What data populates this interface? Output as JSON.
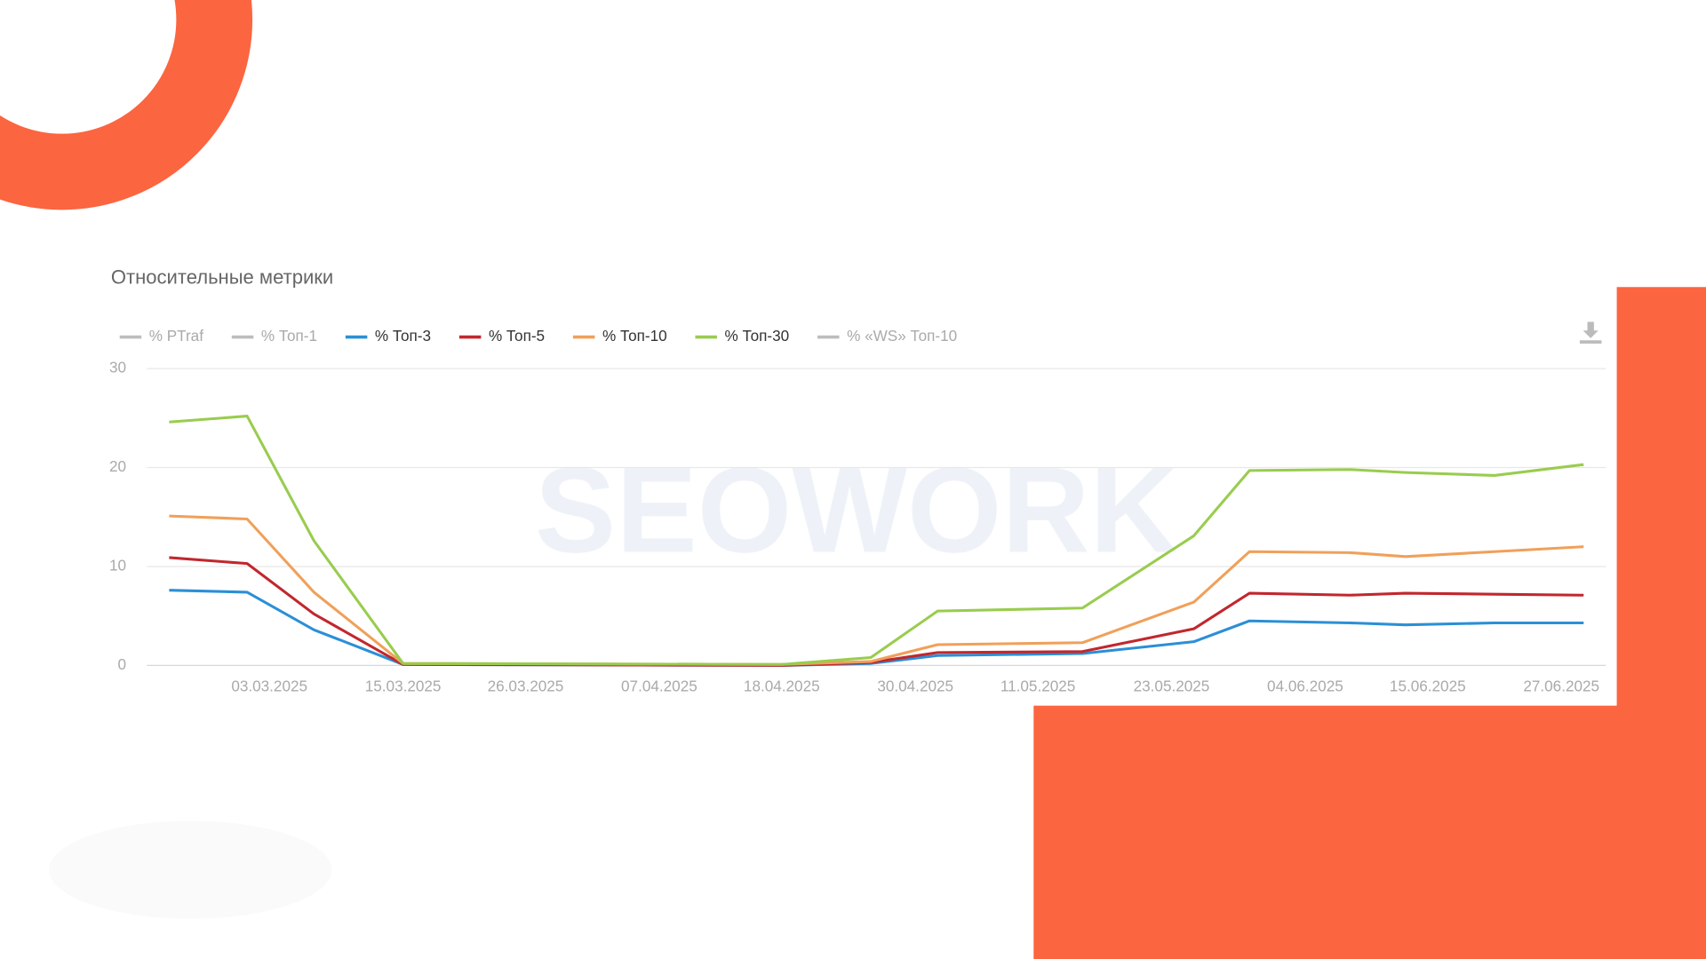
{
  "chart_data": {
    "type": "line",
    "title": "Относительные метрики",
    "watermark": "SEOWORK",
    "x": [
      "22.02.2025",
      "01.03.2025",
      "07.03.2025",
      "15.03.2025",
      "18.04.2025",
      "26.04.2025",
      "02.05.2025",
      "15.05.2025",
      "25.05.2025",
      "30.05.2025",
      "08.06.2025",
      "13.06.2025",
      "21.06.2025",
      "29.06.2025"
    ],
    "xlim": [
      "20.02.2025",
      "01.07.2025"
    ],
    "xticks": [
      "03.03.2025",
      "15.03.2025",
      "26.03.2025",
      "07.04.2025",
      "18.04.2025",
      "30.04.2025",
      "11.05.2025",
      "23.05.2025",
      "04.06.2025",
      "15.06.2025",
      "27.06.2025"
    ],
    "ylim": [
      0,
      30
    ],
    "yticks": [
      0,
      10,
      20,
      30
    ],
    "grid": true,
    "series": [
      {
        "name": "% PTraf",
        "color": "#bdbdbd",
        "visible": false,
        "values": [
          null,
          null,
          null,
          null,
          null,
          null,
          null,
          null,
          null,
          null,
          null,
          null,
          null,
          null
        ]
      },
      {
        "name": "% Топ-1",
        "color": "#bdbdbd",
        "visible": false,
        "values": [
          null,
          null,
          null,
          null,
          null,
          null,
          null,
          null,
          null,
          null,
          null,
          null,
          null,
          null
        ]
      },
      {
        "name": "% Топ-3",
        "color": "#2b8fd6",
        "visible": true,
        "values": [
          7.6,
          7.4,
          3.6,
          0.1,
          0.0,
          0.2,
          1.0,
          1.2,
          2.4,
          4.5,
          4.3,
          4.1,
          4.3,
          4.3
        ]
      },
      {
        "name": "% Топ-5",
        "color": "#c1272d",
        "visible": true,
        "values": [
          10.9,
          10.3,
          5.2,
          0.1,
          0.0,
          0.3,
          1.3,
          1.4,
          3.7,
          7.3,
          7.1,
          7.3,
          7.2,
          7.1
        ]
      },
      {
        "name": "% Топ-10",
        "color": "#f0a05a",
        "visible": true,
        "values": [
          15.1,
          14.8,
          7.4,
          0.2,
          0.1,
          0.4,
          2.1,
          2.3,
          6.4,
          11.5,
          11.4,
          11.0,
          11.5,
          12.0
        ]
      },
      {
        "name": "% Топ-30",
        "color": "#99cc4e",
        "visible": true,
        "values": [
          24.6,
          25.2,
          12.6,
          0.2,
          0.1,
          0.8,
          5.5,
          5.8,
          13.1,
          19.7,
          19.8,
          19.5,
          19.2,
          20.3
        ]
      },
      {
        "name": "% «WS» Топ-10",
        "color": "#bdbdbd",
        "visible": false,
        "values": [
          null,
          null,
          null,
          null,
          null,
          null,
          null,
          null,
          null,
          null,
          null,
          null,
          null,
          null
        ]
      }
    ]
  }
}
